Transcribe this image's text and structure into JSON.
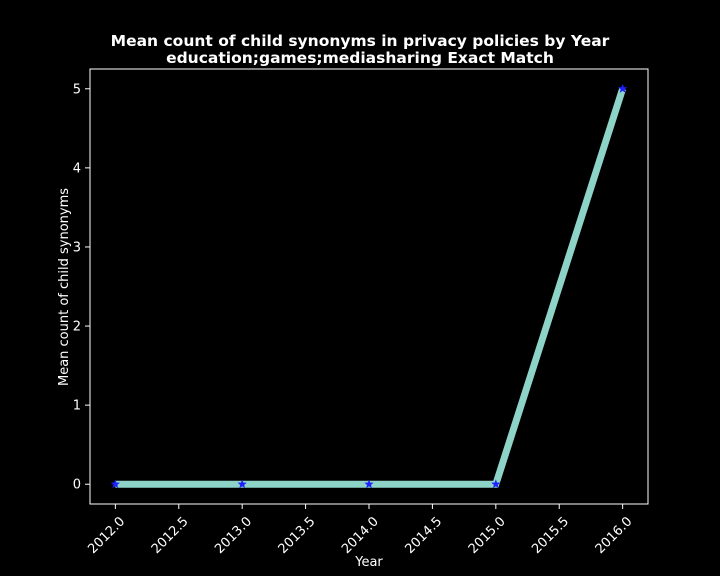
{
  "chart_data": {
    "type": "line",
    "title": "Mean count of child synonyms in privacy policies by Year",
    "subtitle": "education;games;mediasharing Exact Match",
    "xlabel": "Year",
    "ylabel": "Mean count of child synonyms",
    "x": [
      2012,
      2013,
      2014,
      2015,
      2016
    ],
    "series": [
      {
        "values": [
          0,
          0,
          0,
          0,
          5
        ]
      }
    ],
    "xlim": [
      2011.8,
      2016.2
    ],
    "ylim": [
      -0.25,
      5.25
    ],
    "xticks": [
      "2012.0",
      "2012.5",
      "2013.0",
      "2013.5",
      "2014.0",
      "2014.5",
      "2015.0",
      "2015.5",
      "2016.0"
    ],
    "xtick_values": [
      2012.0,
      2012.5,
      2013.0,
      2013.5,
      2014.0,
      2014.5,
      2015.0,
      2015.5,
      2016.0
    ],
    "yticks": [
      "0",
      "1",
      "2",
      "3",
      "4",
      "5"
    ],
    "ytick_values": [
      0,
      1,
      2,
      3,
      4,
      5
    ],
    "grid": false,
    "legend": "none",
    "colors": {
      "background": "#000000",
      "line": "#8dd3c7",
      "marker": "#1f1fff",
      "axis": "#ffffff"
    }
  }
}
